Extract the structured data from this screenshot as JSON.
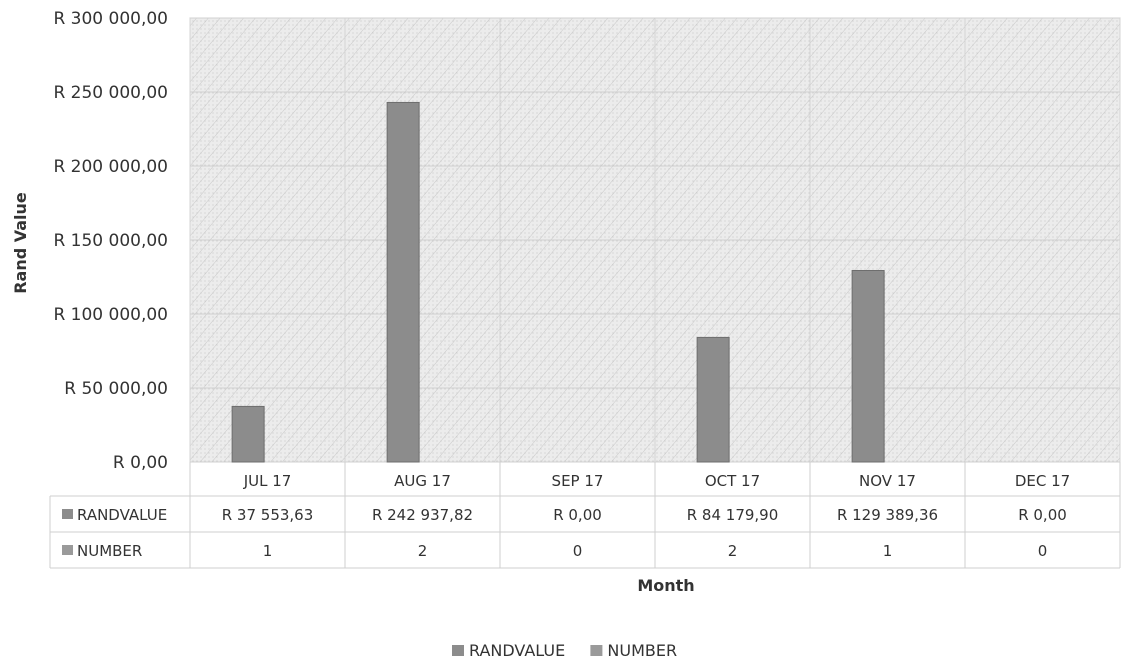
{
  "chart_data": {
    "type": "bar",
    "categories": [
      "JUL 17",
      "AUG 17",
      "SEP 17",
      "OCT 17",
      "NOV 17",
      "DEC 17"
    ],
    "series": [
      {
        "name": "RANDVALUE",
        "values": [
          37553.63,
          242937.82,
          0,
          84179.9,
          129389.36,
          0
        ],
        "labels": [
          "R 37 553,63",
          "R 242 937,82",
          "R 0,00",
          "R 84 179,90",
          "R 129 389,36",
          "R 0,00"
        ],
        "color": "#8c8c8c"
      },
      {
        "name": "NUMBER",
        "values": [
          1,
          2,
          0,
          2,
          1,
          0
        ],
        "labels": [
          "1",
          "2",
          "0",
          "2",
          "1",
          "0"
        ],
        "color": "#9a9a9a"
      }
    ],
    "ylim": [
      0,
      300000
    ],
    "yticks": [
      0,
      50000,
      100000,
      150000,
      200000,
      250000,
      300000
    ],
    "ytick_labels": [
      "R  0,00",
      "R 50 000,00",
      "R 100 000,00",
      "R 150 000,00",
      "R 200 000,00",
      "R 250 000,00",
      "R 300 000,00"
    ],
    "xlabel": "Month",
    "ylabel": "Rand Value",
    "grid": true,
    "data_table": true,
    "legend_position": "bottom",
    "plot_background": "#e6e6e6",
    "bar_color": "#8c8c8c"
  }
}
